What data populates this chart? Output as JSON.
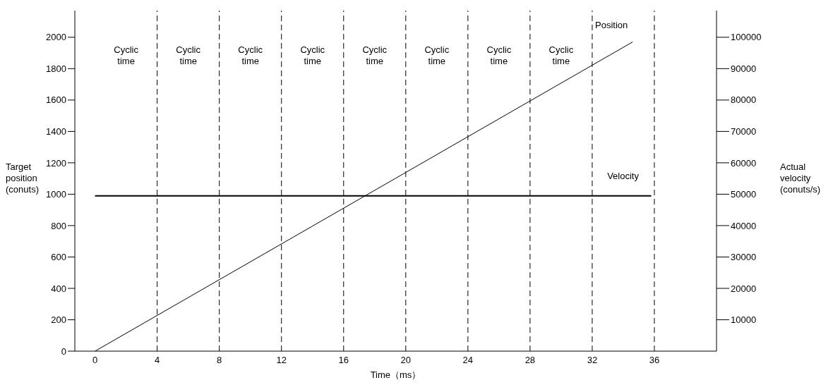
{
  "chart_data": {
    "type": "line",
    "xlabel": "Time（ms）",
    "ylabel": "Target\nposition\n(conuts)",
    "y2label": "Actual\nvelocity\n(conuts/s)",
    "xlim": [
      -1.3,
      40
    ],
    "xticks": [
      0,
      4,
      8,
      12,
      16,
      20,
      24,
      28,
      32,
      36
    ],
    "ylim": [
      0,
      2170
    ],
    "yticks": [
      0,
      200,
      400,
      600,
      800,
      1000,
      1200,
      1400,
      1600,
      1800,
      2000
    ],
    "y2lim": [
      0,
      108500
    ],
    "y2ticks": [
      10000,
      20000,
      30000,
      40000,
      50000,
      60000,
      70000,
      80000,
      90000,
      100000
    ],
    "series": [
      {
        "name": "Position",
        "color": "#000000",
        "x": [
          0,
          34.6
        ],
        "values": [
          0,
          1970
        ]
      },
      {
        "name": "Velocity",
        "color": "#000000",
        "axis": "y2",
        "x": [
          0,
          35.8
        ],
        "values": [
          49500,
          49500
        ]
      }
    ],
    "ref_lines": [
      {
        "axis": "x",
        "value": 4,
        "line_style": "dashed",
        "color": "#000000"
      },
      {
        "axis": "x",
        "value": 8,
        "line_style": "dashed",
        "color": "#000000"
      },
      {
        "axis": "x",
        "value": 12,
        "line_style": "dashed",
        "color": "#000000"
      },
      {
        "axis": "x",
        "value": 16,
        "line_style": "dashed",
        "color": "#000000"
      },
      {
        "axis": "x",
        "value": 20,
        "line_style": "dashed",
        "color": "#000000"
      },
      {
        "axis": "x",
        "value": 24,
        "line_style": "dashed",
        "color": "#000000"
      },
      {
        "axis": "x",
        "value": 28,
        "line_style": "dashed",
        "color": "#000000"
      },
      {
        "axis": "x",
        "value": 32,
        "line_style": "dashed",
        "color": "#000000"
      },
      {
        "axis": "x",
        "value": 36,
        "line_style": "dashed",
        "color": "#000000"
      }
    ],
    "annotations": [
      "Cyclic time",
      "Cyclic time",
      "Cyclic time",
      "Cyclic time",
      "Cyclic time",
      "Cyclic time",
      "Cyclic time",
      "Cyclic time"
    ],
    "grid": false,
    "legend": false,
    "marker": "none",
    "line_style": "solid"
  }
}
